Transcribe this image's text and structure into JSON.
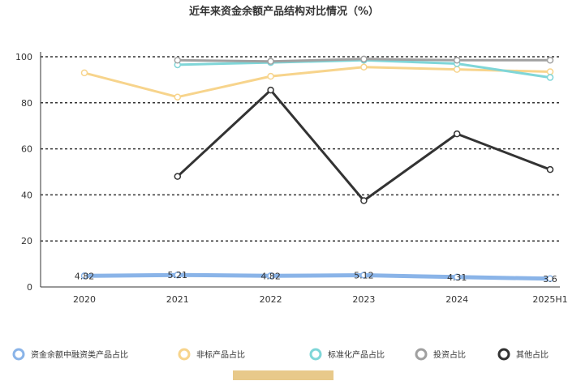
{
  "chart_data": {
    "type": "line",
    "title": "近年来资金余额产品结构对比情况（%）",
    "categories": [
      "2020",
      "2021",
      "2022",
      "2023",
      "2024",
      "2025H1"
    ],
    "ylim": [
      0,
      100
    ],
    "yticks": [
      "0",
      "20",
      "40",
      "60",
      "80",
      "100"
    ],
    "grid": true,
    "legend_position": "bottom",
    "series": [
      {
        "name": "资金余额中融资类产品占比",
        "color": "#8ab4e8",
        "values": [
          4.82,
          5.21,
          4.82,
          5.12,
          4.31,
          3.6
        ],
        "labels": [
          "4.82",
          "5.21",
          "4.82",
          "5.12",
          "4.31",
          "3.6"
        ]
      },
      {
        "name": "非标产品占比",
        "color": "#f7d48c",
        "values": [
          93,
          82.5,
          91.5,
          95.5,
          94.5,
          93.5
        ],
        "labels": []
      },
      {
        "name": "标准化产品占比",
        "color": "#7fd6d8",
        "values": [
          null,
          96.5,
          97.5,
          98.5,
          97,
          91
        ],
        "labels": []
      },
      {
        "name": "投资占比",
        "color": "#a0a0a0",
        "values": [
          null,
          98.5,
          98,
          99,
          98.5,
          98.5
        ],
        "labels": []
      },
      {
        "name": "其他占比",
        "color": "#333333",
        "values": [
          null,
          48,
          85.5,
          37.5,
          66.5,
          51
        ],
        "labels": []
      }
    ]
  }
}
